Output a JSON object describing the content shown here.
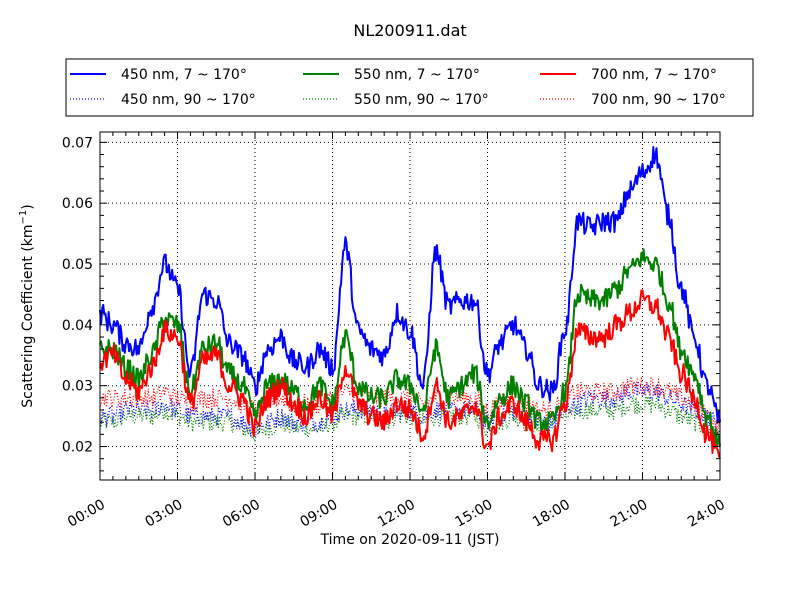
{
  "chart_data": {
    "type": "line",
    "title": "NL200911.dat",
    "xlabel": "Time on 2020-09-11 (JST)",
    "ylabel": "Scattering Coefficient (km",
    "ylabel_sup": "−1",
    "ylabel_close": ")",
    "xlim": [
      0,
      24
    ],
    "ylim": [
      0.0145,
      0.0717
    ],
    "grid": true,
    "legend_placement": "top (above plot), 3 columns",
    "x_ticks": [
      0,
      3,
      6,
      9,
      12,
      15,
      18,
      21,
      24
    ],
    "x_tick_labels": [
      "00:00",
      "03:00",
      "06:00",
      "09:00",
      "12:00",
      "15:00",
      "18:00",
      "21:00",
      "24:00"
    ],
    "y_ticks": [
      0.02,
      0.03,
      0.04,
      0.05,
      0.06,
      0.07
    ],
    "y_tick_labels": [
      "0.02",
      "0.03",
      "0.04",
      "0.05",
      "0.06",
      "0.07"
    ],
    "x_hours": [
      0,
      0.5,
      1,
      1.5,
      2,
      2.5,
      3,
      3.5,
      4,
      4.5,
      5,
      5.5,
      6,
      6.5,
      7,
      7.5,
      8,
      8.5,
      9,
      9.5,
      10,
      10.5,
      11,
      11.5,
      12,
      12.5,
      13,
      13.5,
      14,
      14.5,
      15,
      15.5,
      16,
      16.5,
      17,
      17.5,
      18,
      18.5,
      19,
      19.5,
      20,
      20.5,
      21,
      21.5,
      22,
      22.5,
      23,
      23.5,
      24
    ],
    "series": [
      {
        "name": "450 nm, 7 ~ 170°",
        "color": "#0000ff",
        "style": "solid",
        "values": [
          0.042,
          0.04,
          0.037,
          0.036,
          0.043,
          0.05,
          0.046,
          0.032,
          0.045,
          0.044,
          0.037,
          0.035,
          0.03,
          0.036,
          0.038,
          0.034,
          0.033,
          0.036,
          0.033,
          0.053,
          0.039,
          0.036,
          0.035,
          0.042,
          0.039,
          0.03,
          0.052,
          0.043,
          0.044,
          0.044,
          0.032,
          0.037,
          0.04,
          0.036,
          0.03,
          0.029,
          0.039,
          0.057,
          0.056,
          0.057,
          0.057,
          0.062,
          0.065,
          0.068,
          0.058,
          0.046,
          0.038,
          0.03,
          0.024
        ]
      },
      {
        "name": "550 nm, 7 ~ 170°",
        "color": "#008000",
        "style": "solid",
        "values": [
          0.036,
          0.036,
          0.033,
          0.031,
          0.035,
          0.041,
          0.04,
          0.029,
          0.036,
          0.037,
          0.032,
          0.03,
          0.025,
          0.03,
          0.031,
          0.029,
          0.027,
          0.03,
          0.027,
          0.038,
          0.03,
          0.028,
          0.028,
          0.031,
          0.03,
          0.026,
          0.036,
          0.028,
          0.03,
          0.032,
          0.024,
          0.028,
          0.03,
          0.027,
          0.024,
          0.024,
          0.029,
          0.045,
          0.044,
          0.044,
          0.046,
          0.049,
          0.051,
          0.05,
          0.044,
          0.036,
          0.032,
          0.025,
          0.02
        ]
      },
      {
        "name": "700 nm, 7 ~ 170°",
        "color": "#ff0000",
        "style": "solid",
        "values": [
          0.034,
          0.035,
          0.031,
          0.029,
          0.033,
          0.039,
          0.038,
          0.027,
          0.034,
          0.035,
          0.03,
          0.028,
          0.023,
          0.028,
          0.03,
          0.027,
          0.025,
          0.028,
          0.025,
          0.033,
          0.027,
          0.025,
          0.024,
          0.027,
          0.026,
          0.022,
          0.03,
          0.024,
          0.025,
          0.027,
          0.02,
          0.025,
          0.027,
          0.024,
          0.021,
          0.021,
          0.027,
          0.039,
          0.038,
          0.038,
          0.04,
          0.042,
          0.044,
          0.043,
          0.038,
          0.032,
          0.028,
          0.022,
          0.018
        ]
      },
      {
        "name": "450 nm, 90 ~ 170°",
        "color": "#0000ff",
        "style": "dotted",
        "values": [
          0.025,
          0.025,
          0.026,
          0.026,
          0.026,
          0.027,
          0.026,
          0.025,
          0.025,
          0.025,
          0.025,
          0.024,
          0.023,
          0.024,
          0.025,
          0.024,
          0.024,
          0.024,
          0.025,
          0.026,
          0.026,
          0.026,
          0.025,
          0.026,
          0.026,
          0.025,
          0.026,
          0.026,
          0.026,
          0.026,
          0.024,
          0.025,
          0.026,
          0.025,
          0.024,
          0.024,
          0.026,
          0.027,
          0.028,
          0.028,
          0.028,
          0.029,
          0.029,
          0.029,
          0.028,
          0.027,
          0.026,
          0.025,
          0.023
        ]
      },
      {
        "name": "550 nm, 90 ~ 170°",
        "color": "#008000",
        "style": "dotted",
        "values": [
          0.024,
          0.024,
          0.025,
          0.025,
          0.025,
          0.026,
          0.025,
          0.024,
          0.024,
          0.024,
          0.024,
          0.023,
          0.022,
          0.023,
          0.024,
          0.023,
          0.023,
          0.023,
          0.024,
          0.025,
          0.025,
          0.025,
          0.024,
          0.025,
          0.025,
          0.024,
          0.025,
          0.025,
          0.025,
          0.025,
          0.023,
          0.024,
          0.025,
          0.024,
          0.023,
          0.023,
          0.025,
          0.026,
          0.026,
          0.026,
          0.026,
          0.027,
          0.027,
          0.027,
          0.026,
          0.025,
          0.024,
          0.023,
          0.021
        ]
      },
      {
        "name": "700 nm, 90 ~ 170°",
        "color": "#ff0000",
        "style": "dotted",
        "values": [
          0.028,
          0.028,
          0.028,
          0.028,
          0.028,
          0.029,
          0.028,
          0.027,
          0.028,
          0.028,
          0.028,
          0.027,
          0.026,
          0.027,
          0.028,
          0.027,
          0.027,
          0.027,
          0.028,
          0.029,
          0.029,
          0.028,
          0.028,
          0.028,
          0.028,
          0.027,
          0.028,
          0.028,
          0.028,
          0.028,
          0.026,
          0.027,
          0.028,
          0.027,
          0.026,
          0.026,
          0.028,
          0.029,
          0.029,
          0.029,
          0.029,
          0.03,
          0.03,
          0.03,
          0.029,
          0.028,
          0.027,
          0.025,
          0.023
        ]
      }
    ]
  }
}
